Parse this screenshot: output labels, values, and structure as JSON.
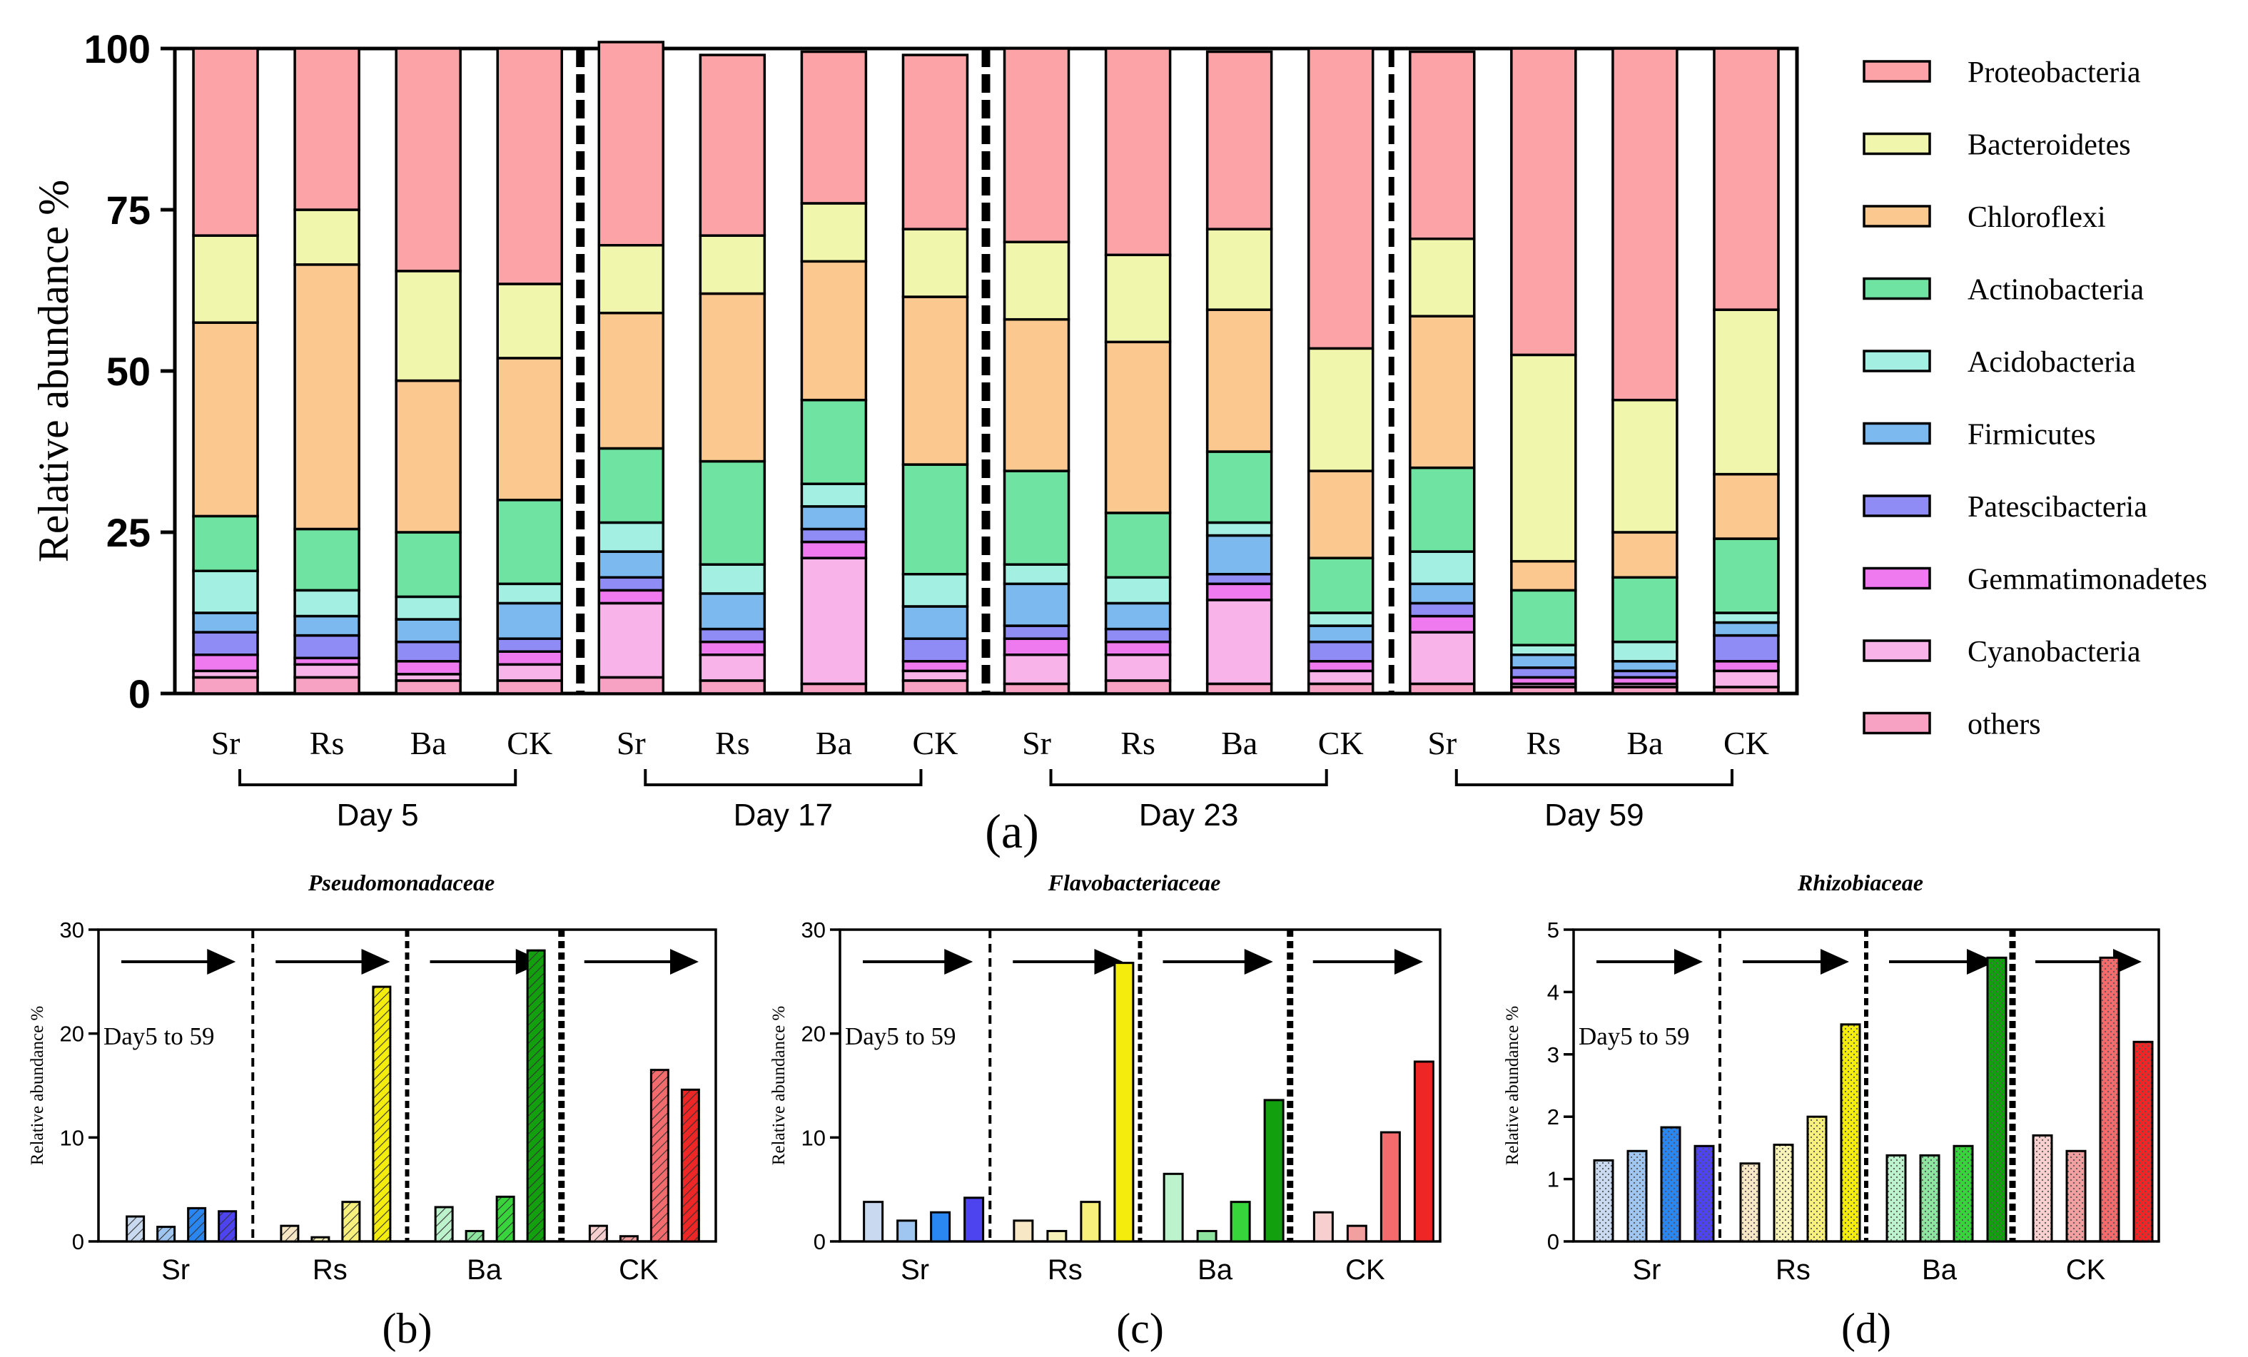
{
  "chart_data": [
    {
      "id": "a",
      "type": "bar",
      "stacked": true,
      "panel_label": "(a)",
      "title": "",
      "ylabel": "Relative abundance %",
      "ylim": [
        0,
        100
      ],
      "yticks": [
        "0",
        "25",
        "50",
        "75",
        "100"
      ],
      "categories": [
        "Sr",
        "Rs",
        "Ba",
        "CK",
        "Sr",
        "Rs",
        "Ba",
        "CK",
        "Sr",
        "Rs",
        "Ba",
        "CK",
        "Sr",
        "Rs",
        "Ba",
        "CK"
      ],
      "groups": [
        "Day 5",
        "Day 17",
        "Day 23",
        "Day 59"
      ],
      "legend_position": "right",
      "series": [
        {
          "name": "others",
          "color": "#f7a1c3",
          "values": [
            2.5,
            2.5,
            2,
            2,
            2.5,
            2,
            1.5,
            2,
            1.5,
            2,
            1.5,
            1.5,
            1.5,
            1,
            1,
            1
          ]
        },
        {
          "name": "Cyanobacteria",
          "color": "#f8b4e8",
          "values": [
            1,
            2,
            1,
            2.5,
            11.5,
            4,
            19.5,
            1.5,
            4.5,
            4,
            13,
            2,
            8,
            0.5,
            0.5,
            2.5
          ]
        },
        {
          "name": "Gemmatimonadetes",
          "color": "#ef79ee",
          "values": [
            2.5,
            1,
            2,
            2,
            2,
            2,
            2.5,
            1.5,
            2.5,
            2,
            2.5,
            1.5,
            2.5,
            1,
            1,
            1.5
          ]
        },
        {
          "name": "Patescibacteria",
          "color": "#8f8cf5",
          "values": [
            3.5,
            3.5,
            3,
            2,
            2,
            2,
            2,
            3.5,
            2,
            2,
            1.5,
            3,
            2,
            1.5,
            1,
            4
          ]
        },
        {
          "name": "Firmicutes",
          "color": "#7cb9ee",
          "values": [
            3,
            3,
            3.5,
            5.5,
            4,
            5.5,
            3.5,
            5,
            6.5,
            4,
            6,
            2.5,
            3,
            2,
            1.5,
            2
          ]
        },
        {
          "name": "Acidobacteria",
          "color": "#a3f0e3",
          "values": [
            6.5,
            4,
            3.5,
            3,
            4.5,
            4.5,
            3.5,
            5,
            3,
            4,
            2,
            2,
            5,
            1.5,
            3,
            1.5
          ]
        },
        {
          "name": "Actinobacteria",
          "color": "#6fe3a2",
          "values": [
            8.5,
            9.5,
            10,
            13,
            11.5,
            16,
            13,
            17,
            14.5,
            10,
            11,
            8.5,
            13,
            8.5,
            10,
            11.5
          ]
        },
        {
          "name": "Chloroflexi",
          "color": "#fbc88f",
          "values": [
            30,
            41,
            23.5,
            22,
            21,
            26,
            21.5,
            26,
            23.5,
            26.5,
            22,
            13.5,
            23.5,
            4.5,
            7,
            10
          ]
        },
        {
          "name": "Bacteroidetes",
          "color": "#f1f6ad",
          "values": [
            13.5,
            8.5,
            17,
            11.5,
            10.5,
            9,
            9,
            10.5,
            12,
            13.5,
            12.5,
            19,
            12,
            32,
            20.5,
            25.5
          ]
        },
        {
          "name": "Proteobacteria",
          "color": "#fba3a6",
          "values": [
            29,
            25,
            34.5,
            36.5,
            31.5,
            28,
            23.5,
            27,
            30,
            32,
            27.5,
            46.5,
            29,
            47.5,
            54.5,
            40.5
          ]
        }
      ]
    },
    {
      "id": "b",
      "type": "bar",
      "panel_label": "(b)",
      "title": "Pseudomonadaceae",
      "ylabel": "Relative abundance %",
      "ylim": [
        0,
        30
      ],
      "yticks": [
        "0",
        "10",
        "20",
        "30"
      ],
      "categories": [
        "Sr",
        "Rs",
        "Ba",
        "CK"
      ],
      "bar_days": [
        "Day 5",
        "Day 17",
        "Day 23",
        "Day 59"
      ],
      "annotation": "Day5 to 59",
      "pattern": "hatch",
      "values": [
        [
          2.4,
          1.4,
          3.2,
          2.9
        ],
        [
          1.5,
          0.4,
          3.8,
          24.5
        ],
        [
          3.3,
          1.0,
          4.3,
          28.0
        ],
        [
          1.5,
          0.5,
          16.5,
          14.6
        ]
      ]
    },
    {
      "id": "c",
      "type": "bar",
      "panel_label": "(c)",
      "title": "Flavobacteriaceae",
      "ylabel": "Relative abundance %",
      "ylim": [
        0,
        30
      ],
      "yticks": [
        "0",
        "10",
        "20",
        "30"
      ],
      "categories": [
        "Sr",
        "Rs",
        "Ba",
        "CK"
      ],
      "bar_days": [
        "Day 5",
        "Day 17",
        "Day 23",
        "Day 59"
      ],
      "annotation": "Day5 to 59",
      "pattern": "plain",
      "values": [
        [
          3.8,
          2.0,
          2.8,
          4.2
        ],
        [
          2.0,
          1.0,
          3.8,
          26.8
        ],
        [
          6.5,
          1.0,
          3.8,
          13.6
        ],
        [
          2.8,
          1.5,
          10.5,
          17.3
        ]
      ]
    },
    {
      "id": "d",
      "type": "bar",
      "panel_label": "(d)",
      "title": "Rhizobiaceae",
      "ylabel": "Relative abundance %",
      "ylim": [
        0,
        5
      ],
      "yticks": [
        "0",
        "1",
        "2",
        "3",
        "4",
        "5"
      ],
      "categories": [
        "Sr",
        "Rs",
        "Ba",
        "CK"
      ],
      "bar_days": [
        "Day 5",
        "Day 17",
        "Day 23",
        "Day 59"
      ],
      "annotation": "Day5 to 59",
      "pattern": "dots",
      "values": [
        [
          1.3,
          1.45,
          1.83,
          1.53
        ],
        [
          1.25,
          1.55,
          2.0,
          3.48
        ],
        [
          1.38,
          1.38,
          1.53,
          4.55
        ],
        [
          1.7,
          1.45,
          4.55,
          3.2
        ]
      ]
    }
  ],
  "colors": {
    "sr": [
      "#c9d9ef",
      "#9fc6f0",
      "#2a86f0",
      "#4d44ef"
    ],
    "rs": [
      "#f7e7c5",
      "#f7f3b8",
      "#f7f07c",
      "#f4ec0c"
    ],
    "ba": [
      "#bcf2cc",
      "#8ee59f",
      "#37d43b",
      "#12a00f"
    ],
    "ck": [
      "#f8cfcf",
      "#f29fa0",
      "#f36b6c",
      "#ee2626"
    ]
  }
}
